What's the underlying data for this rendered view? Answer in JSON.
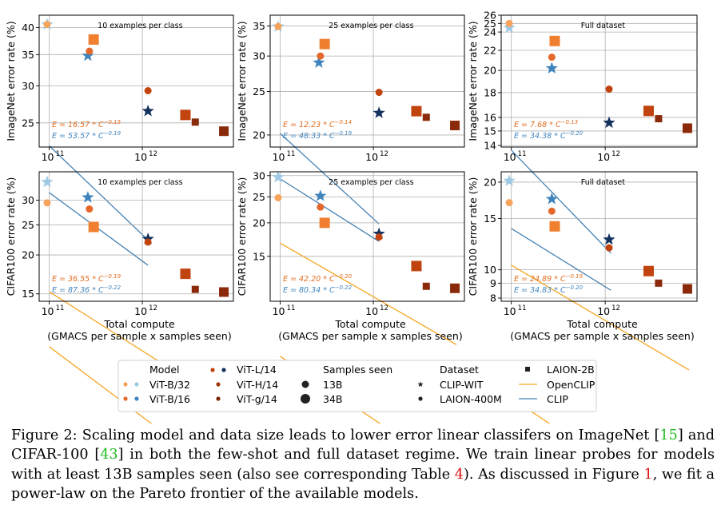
{
  "chart_data": [
    {
      "type": "scatter",
      "id": "inet-10",
      "ylabel": "ImageNet error rate (%)",
      "xlabel": "",
      "annotation": "10 examples per class",
      "xscale": "log",
      "yscale": "log",
      "xlim": [
        78000000000,
        9500000000000
      ],
      "ylim": [
        22.2,
        42.5
      ],
      "yticks": [
        25,
        30,
        35,
        40
      ],
      "ytick_labels": [
        "25",
        "30",
        "35",
        "40"
      ],
      "xticks": [
        100000000000,
        1000000000000
      ],
      "xtick_labels": [
        "10",
        "10"
      ],
      "xtick_exp": "11",
      "xtick_exp2": "12",
      "fit_orange": {
        "c": 16.57,
        "e": 0.15,
        "label": "E = 16.57 * C",
        "exp": "−0.15",
        "x0": 100000000000,
        "x1": 7800000000000
      },
      "fit_blue": {
        "c": 53.57,
        "e": 0.19,
        "label": "E = 53.57 * C",
        "exp": "−0.19",
        "x0": 100000000000,
        "x1": 1150000000000
      },
      "points": [
        {
          "m": "star",
          "c": "#9ec9e2",
          "x": 95000000000,
          "y": 40.6,
          "s": 8
        },
        {
          "m": "star",
          "c": "#3f84bd",
          "x": 260000000000,
          "y": 34.8,
          "s": 8
        },
        {
          "m": "star",
          "c": "#14325e",
          "x": 1150000000000,
          "y": 26.5,
          "s": 8
        },
        {
          "m": "circle",
          "c": "#f6a35c",
          "x": 95000000000,
          "y": 40.6,
          "s": 4.5
        },
        {
          "m": "circle",
          "c": "#e4682a",
          "x": 270000000000,
          "y": 35.6,
          "s": 4.5
        },
        {
          "m": "circle",
          "c": "#c1440e",
          "x": 1150000000000,
          "y": 29.3,
          "s": 4.5
        },
        {
          "m": "square",
          "c": "#f08030",
          "x": 300000000000,
          "y": 37.7,
          "s": 6.5
        },
        {
          "m": "square",
          "c": "#c1440e",
          "x": 2900000000000,
          "y": 26.0,
          "s": 6.5
        },
        {
          "m": "square",
          "c": "#8b2a0a",
          "x": 3700000000000,
          "y": 25.1,
          "s": 4.5
        },
        {
          "m": "square",
          "c": "#8b2a0a",
          "x": 7500000000000,
          "y": 24.0,
          "s": 6
        }
      ]
    },
    {
      "type": "scatter",
      "id": "inet-25",
      "ylabel": "ImageNet error rate (%)",
      "xlabel": "",
      "annotation": "25 examples per class",
      "xscale": "log",
      "yscale": "log",
      "xlim": [
        78000000000,
        9500000000000
      ],
      "ylim": [
        18.8,
        37.0
      ],
      "yticks": [
        20,
        25,
        30,
        35
      ],
      "ytick_labels": [
        "20",
        "25",
        "30",
        "35"
      ],
      "xticks": [
        100000000000,
        1000000000000
      ],
      "xtick_labels": [
        "10",
        "10"
      ],
      "xtick_exp": "11",
      "xtick_exp2": "12",
      "fit_orange": {
        "c": 12.23,
        "e": 0.14,
        "label": "E = 12.23 * C",
        "exp": "−0.14",
        "x0": 100000000000,
        "x1": 7800000000000
      },
      "fit_blue": {
        "c": 48.33,
        "e": 0.19,
        "label": "E = 48.33 * C",
        "exp": "−0.19",
        "x0": 100000000000,
        "x1": 1150000000000
      },
      "points": [
        {
          "m": "star",
          "c": "#9ec9e2",
          "x": 95000000000,
          "y": 34.9,
          "s": 8
        },
        {
          "m": "star",
          "c": "#3f84bd",
          "x": 260000000000,
          "y": 29.0,
          "s": 8
        },
        {
          "m": "star",
          "c": "#14325e",
          "x": 1150000000000,
          "y": 22.4,
          "s": 8
        },
        {
          "m": "circle",
          "c": "#f6a35c",
          "x": 95000000000,
          "y": 34.9,
          "s": 4.5
        },
        {
          "m": "circle",
          "c": "#e4682a",
          "x": 270000000000,
          "y": 30.0,
          "s": 4.5
        },
        {
          "m": "circle",
          "c": "#c1440e",
          "x": 1150000000000,
          "y": 24.9,
          "s": 4.5
        },
        {
          "m": "square",
          "c": "#f08030",
          "x": 300000000000,
          "y": 31.9,
          "s": 6.5
        },
        {
          "m": "square",
          "c": "#c1440e",
          "x": 2900000000000,
          "y": 22.6,
          "s": 6.5
        },
        {
          "m": "square",
          "c": "#8b2a0a",
          "x": 3700000000000,
          "y": 21.9,
          "s": 4.5
        },
        {
          "m": "square",
          "c": "#8b2a0a",
          "x": 7500000000000,
          "y": 21.0,
          "s": 6
        }
      ]
    },
    {
      "type": "scatter",
      "id": "inet-full",
      "ylabel": "ImageNet error rate (%)",
      "xlabel": "",
      "annotation": "Full dataset",
      "xscale": "log",
      "yscale": "log",
      "xlim": [
        78000000000,
        9500000000000
      ],
      "ylim": [
        13.9,
        26.0
      ],
      "yticks": [
        14,
        15,
        16,
        18,
        20,
        22,
        24,
        25,
        26
      ],
      "ytick_labels": [
        "14",
        "15",
        "16",
        "18",
        "20",
        "22",
        "24",
        "25",
        "26"
      ],
      "xticks": [
        100000000000,
        1000000000000
      ],
      "xtick_labels": [
        "10",
        "10"
      ],
      "xtick_exp": "11",
      "xtick_exp2": "12",
      "fit_orange": {
        "c": 7.68,
        "e": 0.13,
        "label": "E = 7.68 * C",
        "exp": "−0.13",
        "x0": 100000000000,
        "x1": 7800000000000
      },
      "fit_blue": {
        "c": 34.38,
        "e": 0.2,
        "label": "E = 34.38 * C",
        "exp": "−0.20",
        "x0": 100000000000,
        "x1": 1150000000000
      },
      "points": [
        {
          "m": "star",
          "c": "#9ec9e2",
          "x": 95000000000,
          "y": 24.5,
          "s": 8
        },
        {
          "m": "star",
          "c": "#3f84bd",
          "x": 270000000000,
          "y": 20.2,
          "s": 8
        },
        {
          "m": "star",
          "c": "#14325e",
          "x": 1100000000000,
          "y": 15.6,
          "s": 8
        },
        {
          "m": "circle",
          "c": "#f6a35c",
          "x": 95000000000,
          "y": 25.0,
          "s": 4.5
        },
        {
          "m": "circle",
          "c": "#e4682a",
          "x": 270000000000,
          "y": 21.3,
          "s": 4.5
        },
        {
          "m": "circle",
          "c": "#c1440e",
          "x": 1100000000000,
          "y": 18.3,
          "s": 4.5
        },
        {
          "m": "square",
          "c": "#f08030",
          "x": 290000000000,
          "y": 23.0,
          "s": 6.5
        },
        {
          "m": "square",
          "c": "#c1440e",
          "x": 2900000000000,
          "y": 16.5,
          "s": 6.5
        },
        {
          "m": "square",
          "c": "#8b2a0a",
          "x": 3700000000000,
          "y": 15.9,
          "s": 4.5
        },
        {
          "m": "square",
          "c": "#8b2a0a",
          "x": 7500000000000,
          "y": 15.2,
          "s": 6
        }
      ]
    },
    {
      "type": "scatter",
      "id": "cifar-10",
      "ylabel": "CIFAR100 error rate (%)",
      "xlabel": "Total compute\n(GMACS per sample x samples seen)",
      "annotation": "10 examples per class",
      "xscale": "log",
      "yscale": "log",
      "xlim": [
        78000000000,
        9500000000000
      ],
      "ylim": [
        14.2,
        37.0
      ],
      "yticks": [
        15,
        20,
        25,
        30
      ],
      "ytick_labels": [
        "15",
        "20",
        "25",
        "30"
      ],
      "xticks": [
        100000000000,
        1000000000000
      ],
      "xtick_labels": [
        "10",
        "10"
      ],
      "xtick_exp": "11",
      "xtick_exp2": "12",
      "fit_orange": {
        "c": 36.55,
        "e": 0.19,
        "label": "E = 36.55 * C",
        "exp": "−0.19",
        "x0": 100000000000,
        "x1": 7800000000000
      },
      "fit_blue": {
        "c": 87.36,
        "e": 0.22,
        "label": "E = 87.36 * C",
        "exp": "−0.22",
        "x0": 100000000000,
        "x1": 1150000000000
      },
      "points": [
        {
          "m": "star",
          "c": "#9ec9e2",
          "x": 95000000000,
          "y": 34.3,
          "s": 8
        },
        {
          "m": "star",
          "c": "#3f84bd",
          "x": 260000000000,
          "y": 30.6,
          "s": 8
        },
        {
          "m": "star",
          "c": "#14325e",
          "x": 1150000000000,
          "y": 22.5,
          "s": 8
        },
        {
          "m": "circle",
          "c": "#f6a35c",
          "x": 95000000000,
          "y": 29.4,
          "s": 4.5
        },
        {
          "m": "circle",
          "c": "#e4682a",
          "x": 270000000000,
          "y": 28.1,
          "s": 4.5
        },
        {
          "m": "circle",
          "c": "#c1440e",
          "x": 1150000000000,
          "y": 22.0,
          "s": 4.5
        },
        {
          "m": "square",
          "c": "#f08030",
          "x": 300000000000,
          "y": 24.6,
          "s": 6.5
        },
        {
          "m": "square",
          "c": "#c1440e",
          "x": 2900000000000,
          "y": 17.4,
          "s": 6.5
        },
        {
          "m": "square",
          "c": "#8b2a0a",
          "x": 3700000000000,
          "y": 15.5,
          "s": 4.5
        },
        {
          "m": "square",
          "c": "#8b2a0a",
          "x": 7500000000000,
          "y": 15.2,
          "s": 6
        }
      ]
    },
    {
      "type": "scatter",
      "id": "cifar-25",
      "ylabel": "CIFAR100 error rate (%)",
      "xlabel": "Total compute\n(GMACS per sample x samples seen)",
      "annotation": "25 examples per class",
      "xscale": "log",
      "yscale": "log",
      "xlim": [
        78000000000,
        9500000000000
      ],
      "ylim": [
        10.2,
        31.0
      ],
      "yticks": [
        15,
        20,
        25,
        30
      ],
      "ytick_labels": [
        "15",
        "20",
        "25",
        "30"
      ],
      "xticks": [
        100000000000,
        1000000000000
      ],
      "xtick_labels": [
        "10",
        "10"
      ],
      "xtick_exp": "11",
      "xtick_exp2": "12",
      "fit_orange": {
        "c": 42.2,
        "e": 0.2,
        "label": "E = 42.20 * C",
        "exp": "−0.20",
        "x0": 100000000000,
        "x1": 7800000000000
      },
      "fit_blue": {
        "c": 80.34,
        "e": 0.22,
        "label": "E = 80.34 * C",
        "exp": "−0.22",
        "x0": 100000000000,
        "x1": 1150000000000
      },
      "points": [
        {
          "m": "star",
          "c": "#9ec9e2",
          "x": 95000000000,
          "y": 29.6,
          "s": 8
        },
        {
          "m": "star",
          "c": "#3f84bd",
          "x": 270000000000,
          "y": 25.2,
          "s": 8
        },
        {
          "m": "star",
          "c": "#14325e",
          "x": 1150000000000,
          "y": 18.2,
          "s": 8
        },
        {
          "m": "circle",
          "c": "#f6a35c",
          "x": 95000000000,
          "y": 24.8,
          "s": 4.5
        },
        {
          "m": "circle",
          "c": "#e4682a",
          "x": 270000000000,
          "y": 22.9,
          "s": 4.5
        },
        {
          "m": "circle",
          "c": "#c1440e",
          "x": 1150000000000,
          "y": 17.7,
          "s": 4.5
        },
        {
          "m": "square",
          "c": "#f08030",
          "x": 300000000000,
          "y": 20.0,
          "s": 6.5
        },
        {
          "m": "square",
          "c": "#c1440e",
          "x": 2900000000000,
          "y": 13.8,
          "s": 6.5
        },
        {
          "m": "square",
          "c": "#8b2a0a",
          "x": 3700000000000,
          "y": 11.6,
          "s": 4.5
        },
        {
          "m": "square",
          "c": "#8b2a0a",
          "x": 7500000000000,
          "y": 11.4,
          "s": 6
        }
      ]
    },
    {
      "type": "scatter",
      "id": "cifar-full",
      "ylabel": "CIFAR100 error rate (%)",
      "xlabel": "Total compute\n(GMACS per sample x samples seen)",
      "annotation": "Full dataset",
      "xscale": "log",
      "yscale": "log",
      "xlim": [
        78000000000,
        9500000000000
      ],
      "ylim": [
        7.8,
        21.7
      ],
      "yticks": [
        8,
        9,
        10,
        15,
        20
      ],
      "ytick_labels": [
        "8",
        "9",
        "10",
        "15",
        "20"
      ],
      "xticks": [
        100000000000,
        1000000000000
      ],
      "xtick_labels": [
        "10",
        "10"
      ],
      "xtick_exp": "11",
      "xtick_exp2": "12",
      "fit_orange": {
        "c": 24.89,
        "e": 0.19,
        "label": "E = 24.89 * C",
        "exp": "−0.19",
        "x0": 100000000000,
        "x1": 7800000000000
      },
      "fit_blue": {
        "c": 34.83,
        "e": 0.2,
        "label": "E = 34.83 * C",
        "exp": "−0.20",
        "x0": 100000000000,
        "x1": 1150000000000
      },
      "points": [
        {
          "m": "star",
          "c": "#9ec9e2",
          "x": 95000000000,
          "y": 20.2,
          "s": 8
        },
        {
          "m": "star",
          "c": "#3f84bd",
          "x": 270000000000,
          "y": 17.5,
          "s": 8
        },
        {
          "m": "star",
          "c": "#14325e",
          "x": 1100000000000,
          "y": 12.7,
          "s": 8
        },
        {
          "m": "circle",
          "c": "#f6a35c",
          "x": 95000000000,
          "y": 17.0,
          "s": 4.5
        },
        {
          "m": "circle",
          "c": "#e4682a",
          "x": 270000000000,
          "y": 15.9,
          "s": 4.5
        },
        {
          "m": "circle",
          "c": "#c1440e",
          "x": 1100000000000,
          "y": 11.9,
          "s": 4.5
        },
        {
          "m": "square",
          "c": "#f08030",
          "x": 290000000000,
          "y": 14.1,
          "s": 6.5
        },
        {
          "m": "square",
          "c": "#c1440e",
          "x": 2900000000000,
          "y": 9.9,
          "s": 6.5
        },
        {
          "m": "square",
          "c": "#8b2a0a",
          "x": 3700000000000,
          "y": 9.0,
          "s": 4.5
        },
        {
          "m": "square",
          "c": "#8b2a0a",
          "x": 7500000000000,
          "y": 8.6,
          "s": 6
        }
      ]
    }
  ],
  "colors": {
    "openclip": "#f5a623",
    "clip": "#4682b4",
    "orange_text": "#e06c1e",
    "blue_text": "#3f84bd",
    "grid": "#b0b0b0"
  },
  "legend": {
    "model_header": "Model",
    "samples_header": "Samples seen",
    "dataset_header": "Dataset",
    "models": [
      "ViT-B/32",
      "ViT-B/16",
      "ViT-L/14",
      "ViT-H/14",
      "ViT-g/14"
    ],
    "samples": [
      "13B",
      "34B"
    ],
    "datasets": [
      "CLIP-WIT",
      "LAION-400M",
      "LAION-2B"
    ],
    "lines": [
      "OpenCLIP",
      "CLIP"
    ]
  },
  "caption": {
    "p1": "Figure 2: Scaling model and data size leads to lower error linear classifers on ImageNet [",
    "ref1": "15",
    "p2": "] and CIFAR-100 [",
    "ref2": "43",
    "p3": "] in both the few-shot and full dataset regime. We train linear probes for models with at least 13B samples seen (also see corresponding Table ",
    "ref3": "4",
    "p4": "). As discussed in Figure ",
    "ref4": "1",
    "p5": ", we fit a power-law on the Pareto frontier of the available models."
  }
}
